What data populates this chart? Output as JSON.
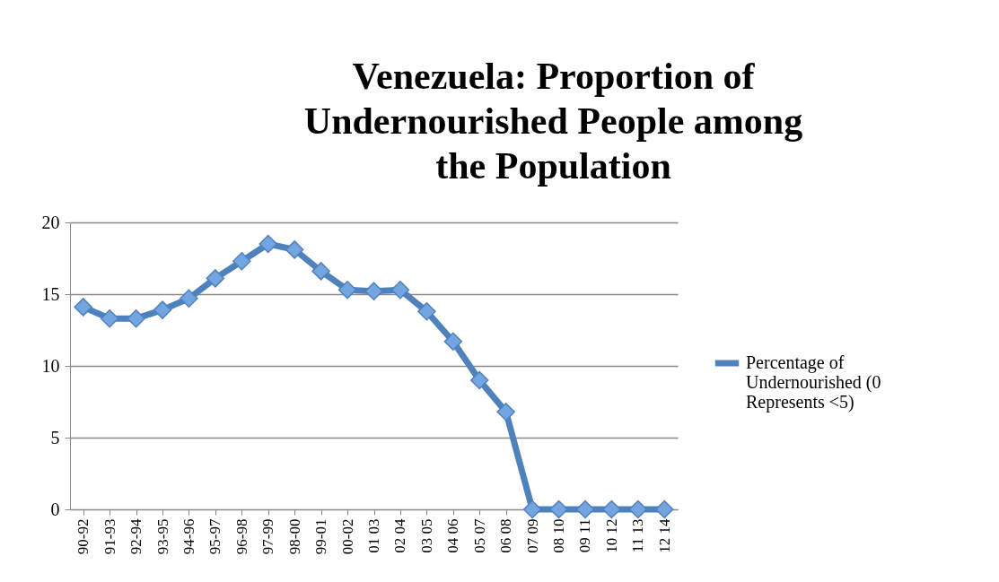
{
  "chart_data": {
    "type": "line",
    "title": "Venezuela: Proportion of Undernourished People among the Population",
    "categories": [
      "90-92",
      "91-93",
      "92-94",
      "93-95",
      "94-96",
      "95-97",
      "96-98",
      "97-99",
      "98-00",
      "99-01",
      "00-02",
      "01 03",
      "02 04",
      "03 05",
      "04 06",
      "05 07",
      "06 08",
      "07 09",
      "08 10",
      "09 11",
      "10 12",
      "11 13",
      "12 14"
    ],
    "series": [
      {
        "name": "Percentage of Undernourished (0 Represents <5)",
        "color": "#4f81bd",
        "values": [
          14.1,
          13.3,
          13.3,
          13.9,
          14.7,
          16.1,
          17.3,
          18.5,
          18.1,
          16.6,
          15.3,
          15.2,
          15.3,
          13.8,
          11.7,
          9.0,
          6.8,
          0,
          0,
          0,
          0,
          0,
          0
        ]
      }
    ],
    "ylim": [
      0,
      20
    ],
    "yticks": [
      0,
      5,
      10,
      15,
      20
    ],
    "grid": "y",
    "legend": "right",
    "marker": "diamond",
    "line_style": "solid"
  }
}
